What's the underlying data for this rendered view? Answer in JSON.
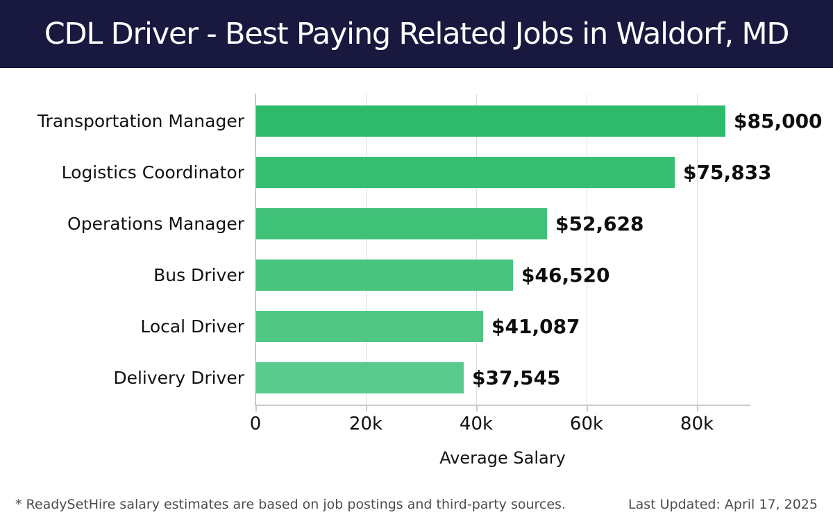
{
  "header": {
    "title": "CDL Driver - Best Paying Related Jobs in Waldorf, MD"
  },
  "chart_data": {
    "type": "bar",
    "orientation": "horizontal",
    "title": "CDL Driver - Best Paying Related Jobs in Waldorf, MD",
    "categories": [
      "Transportation Manager",
      "Logistics Coordinator",
      "Operations Manager",
      "Bus Driver",
      "Local Driver",
      "Delivery Driver"
    ],
    "values": [
      85000,
      75833,
      52628,
      46520,
      41087,
      37545
    ],
    "value_labels": [
      "$85,000",
      "$75,833",
      "$52,628",
      "$46,520",
      "$41,087",
      "$37,545"
    ],
    "xlabel": "Average Salary",
    "ylabel": "",
    "x_ticks": [
      0,
      20000,
      40000,
      60000,
      80000
    ],
    "x_tick_labels": [
      "0",
      "20k",
      "40k",
      "60k",
      "80k"
    ],
    "xlim": [
      0,
      89500
    ],
    "grid": true,
    "legend_position": "none",
    "bar_colors": [
      "#2dbb6b",
      "#36be72",
      "#3fc178",
      "#48c47f",
      "#50c785",
      "#59ca8c"
    ]
  },
  "footer": {
    "note": "* ReadySetHire salary estimates are based on job postings and third-party sources.",
    "last_updated": "Last Updated: April 17, 2025"
  },
  "colors": {
    "header_bg": "#191940",
    "header_text": "#ffffff",
    "grid": "#dedede",
    "axis": "#c9c9c9",
    "label_text": "#111111",
    "value_text": "#0d0d0d",
    "footer_text": "#4d4d4d"
  }
}
